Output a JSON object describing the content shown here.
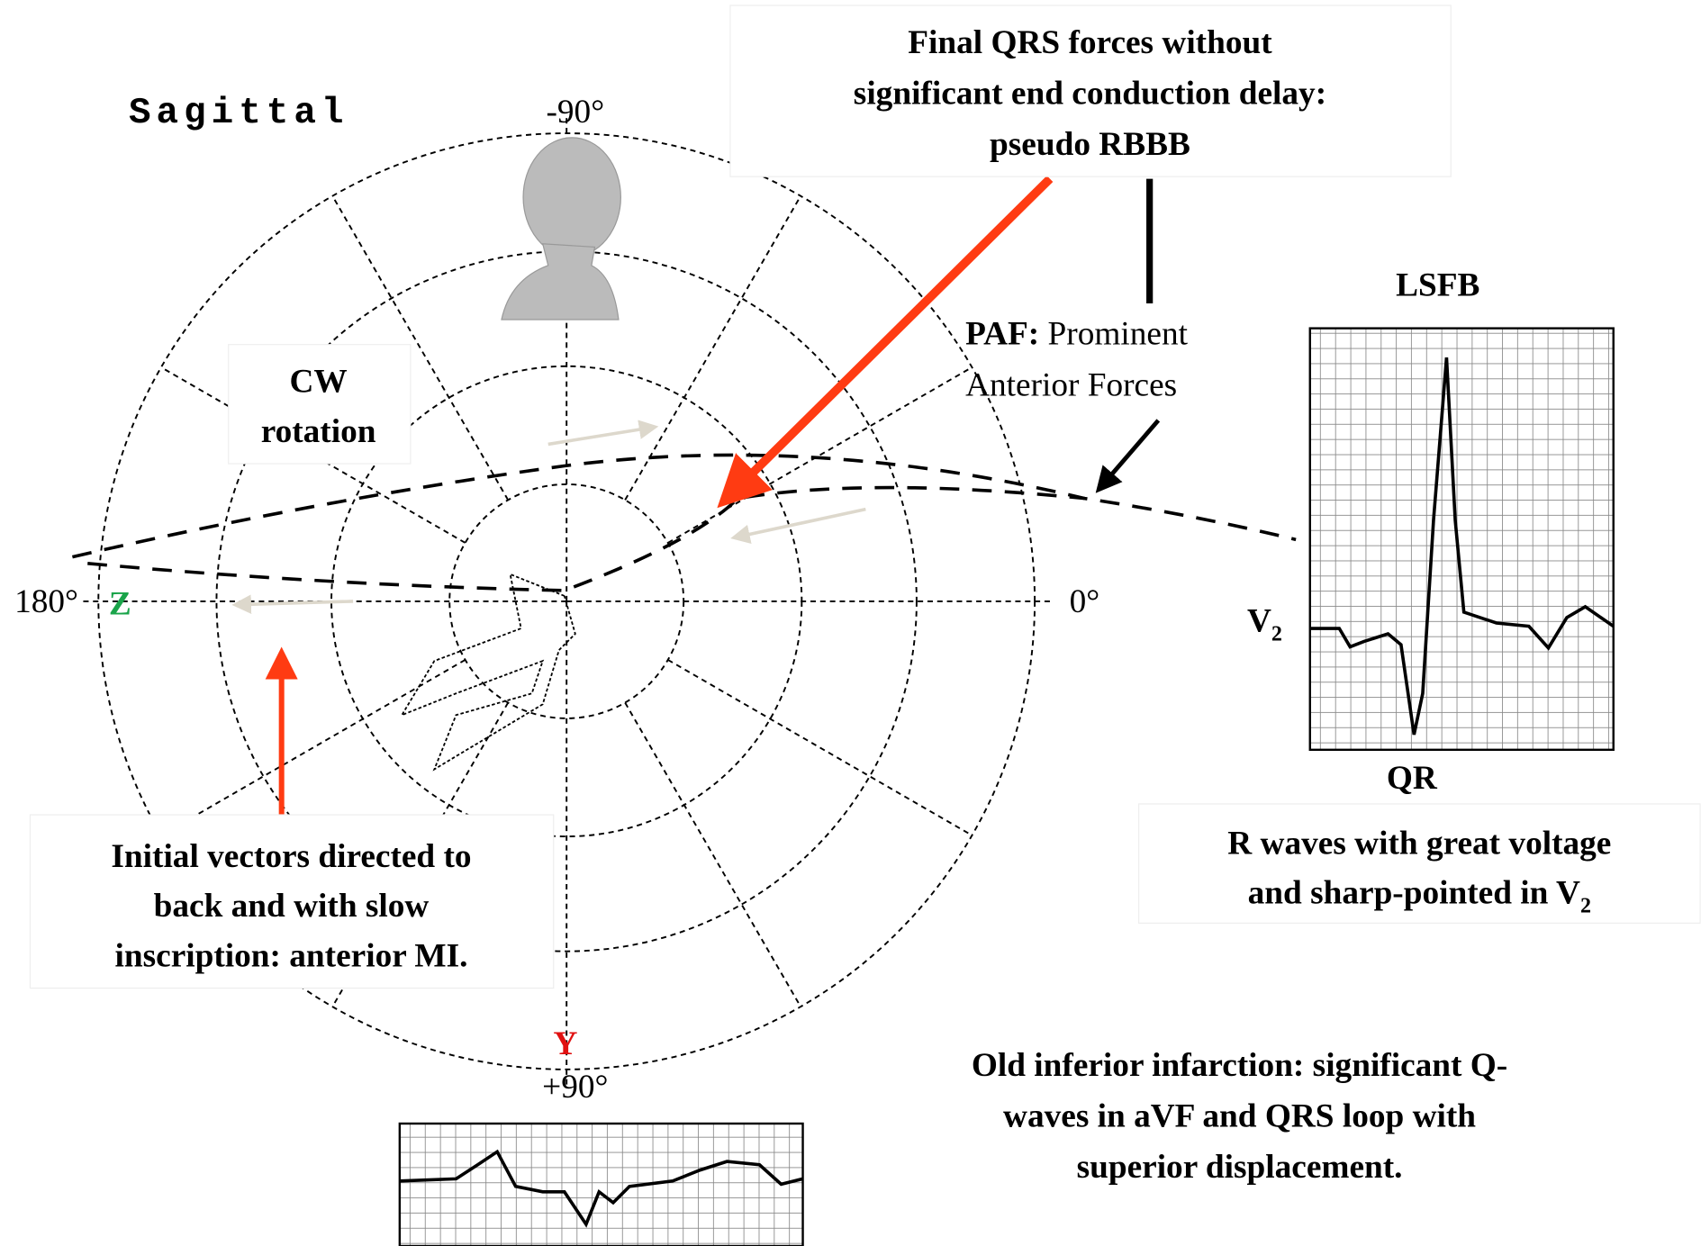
{
  "title": "Sagittal",
  "axis_labels": {
    "top": "-90°",
    "right": "0°",
    "left": "180°",
    "bottom": "+90°",
    "z": "Z",
    "y": "Y"
  },
  "final_qrs_box": {
    "lines": [
      "Final QRS forces without",
      "significant end conduction delay:",
      "pseudo RBBB"
    ]
  },
  "paf": {
    "abbr": "PAF:",
    "line1": "Prominent",
    "line2": "Anterior Forces"
  },
  "cw_box": {
    "lines": [
      "CW",
      "rotation"
    ]
  },
  "lsfb": {
    "title": "LSFB",
    "lead": {
      "main": "V",
      "sub": "2"
    },
    "complex": "QR"
  },
  "r_waves_box": {
    "line1": "R waves with great voltage",
    "line2": {
      "main": "and sharp-pointed in V",
      "sub": "2"
    }
  },
  "initial_vectors_box": {
    "lines": [
      "Initial vectors directed to",
      "back and with slow",
      "inscription: anterior MI."
    ]
  },
  "old_inferior": {
    "lines": [
      "Old inferior infarction: significant Q-",
      "waves in aVF and QRS loop with",
      "superior displacement."
    ]
  }
}
